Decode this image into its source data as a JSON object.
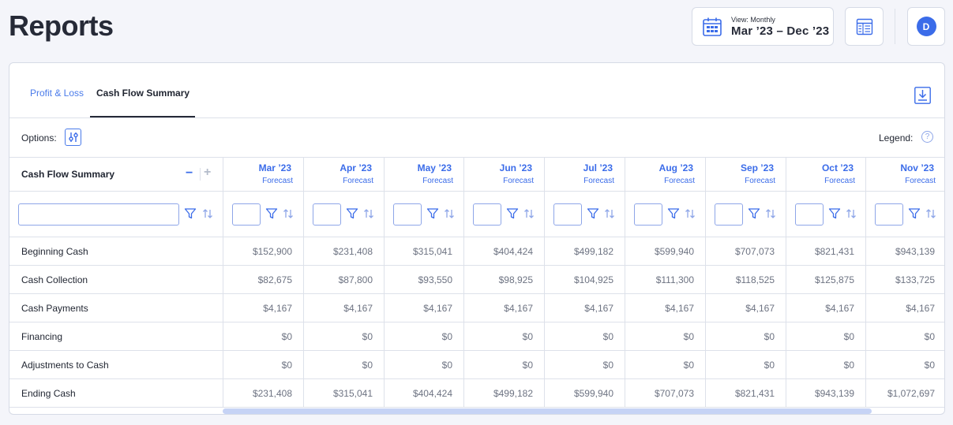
{
  "page": {
    "title": "Reports"
  },
  "header": {
    "view_label": "View: Monthly",
    "view_range": "Mar ’23 – Dec ’23",
    "avatar_initial": "D",
    "accent": "#3b6ce9"
  },
  "tabs": [
    {
      "label": "Profit & Loss",
      "active": false
    },
    {
      "label": "Cash Flow Summary",
      "active": true
    }
  ],
  "options": {
    "label": "Options:",
    "legend_label": "Legend:",
    "legend_icon": "?"
  },
  "table": {
    "title": "Cash Flow Summary",
    "collapse_symbol": "−",
    "expand_symbol": "+",
    "filter_value": "",
    "columns": [
      {
        "month": "Mar ’23",
        "type": "Forecast"
      },
      {
        "month": "Apr ’23",
        "type": "Forecast"
      },
      {
        "month": "May ’23",
        "type": "Forecast"
      },
      {
        "month": "Jun ’23",
        "type": "Forecast"
      },
      {
        "month": "Jul ’23",
        "type": "Forecast"
      },
      {
        "month": "Aug ’23",
        "type": "Forecast"
      },
      {
        "month": "Sep ’23",
        "type": "Forecast"
      },
      {
        "month": "Oct ’23",
        "type": "Forecast"
      },
      {
        "month": "Nov ’23",
        "type": "Forecast"
      }
    ],
    "rows": [
      {
        "label": "Beginning Cash",
        "values": [
          "$152,900",
          "$231,408",
          "$315,041",
          "$404,424",
          "$499,182",
          "$599,940",
          "$707,073",
          "$821,431",
          "$943,139"
        ]
      },
      {
        "label": "Cash Collection",
        "values": [
          "$82,675",
          "$87,800",
          "$93,550",
          "$98,925",
          "$104,925",
          "$111,300",
          "$118,525",
          "$125,875",
          "$133,725"
        ]
      },
      {
        "label": "Cash Payments",
        "values": [
          "$4,167",
          "$4,167",
          "$4,167",
          "$4,167",
          "$4,167",
          "$4,167",
          "$4,167",
          "$4,167",
          "$4,167"
        ]
      },
      {
        "label": "Financing",
        "values": [
          "$0",
          "$0",
          "$0",
          "$0",
          "$0",
          "$0",
          "$0",
          "$0",
          "$0"
        ]
      },
      {
        "label": "Adjustments to Cash",
        "values": [
          "$0",
          "$0",
          "$0",
          "$0",
          "$0",
          "$0",
          "$0",
          "$0",
          "$0"
        ]
      },
      {
        "label": "Ending Cash",
        "values": [
          "$231,408",
          "$315,041",
          "$404,424",
          "$499,182",
          "$599,940",
          "$707,073",
          "$821,431",
          "$943,139",
          "$1,072,697"
        ]
      }
    ]
  }
}
